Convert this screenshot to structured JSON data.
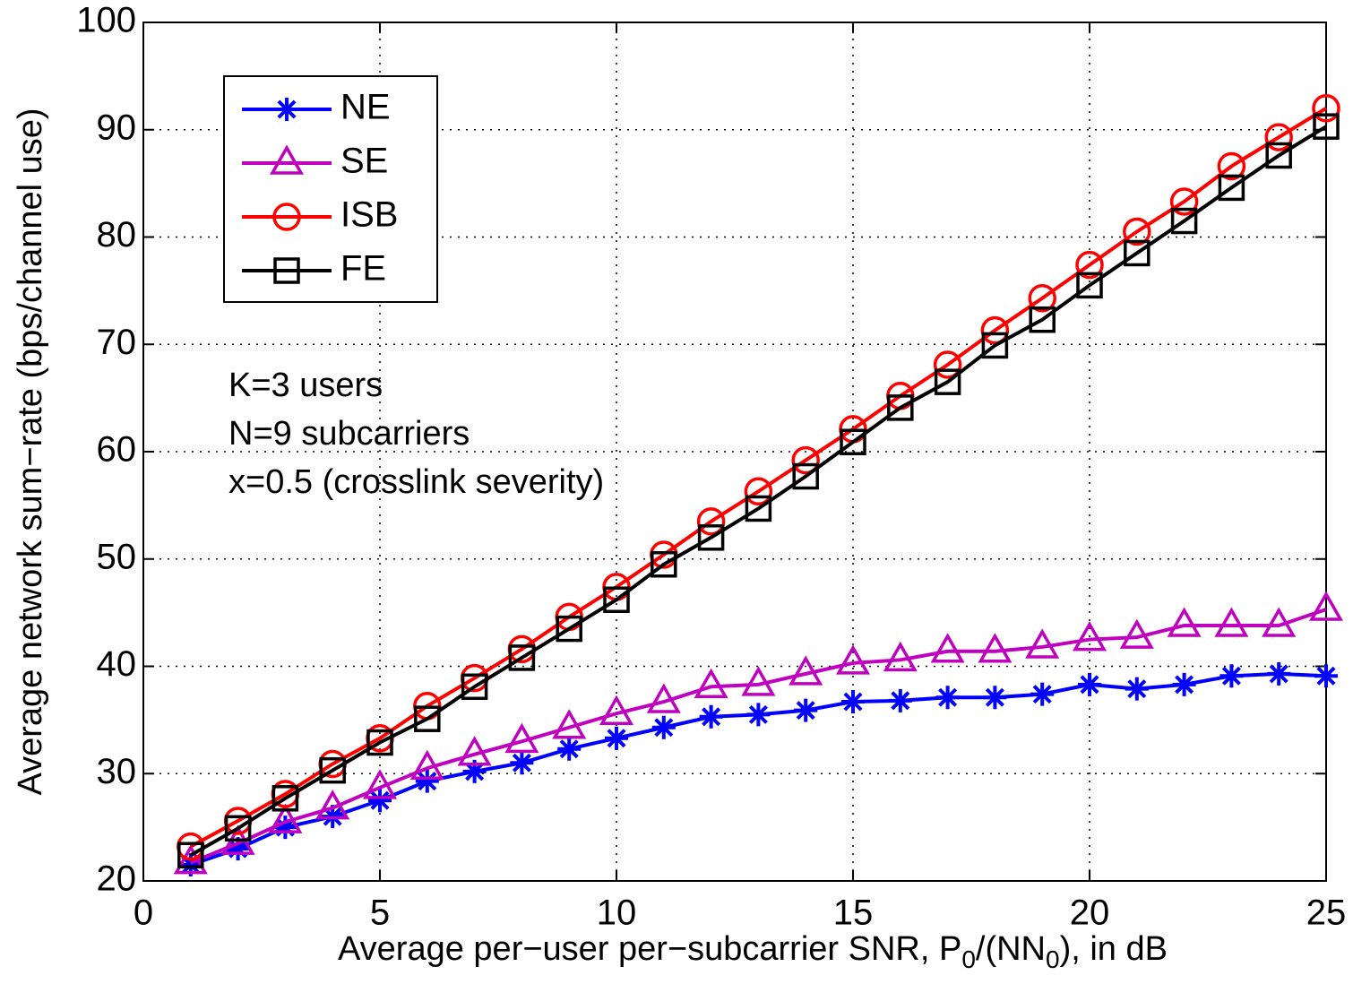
{
  "chart_data": {
    "type": "line",
    "ylabel": "Average network sum−rate (bps/channel use)",
    "xlabel_parts": [
      {
        "text": "Average per−user per−subcarrier SNR, P",
        "sub": false
      },
      {
        "text": "0",
        "sub": true
      },
      {
        "text": "/(NN",
        "sub": false
      },
      {
        "text": "0",
        "sub": true
      },
      {
        "text": "), in dB",
        "sub": false
      }
    ],
    "annotations": [
      "K=3 users",
      "N=9 subcarriers",
      "x=0.5 (crosslink severity)"
    ],
    "x": [
      1,
      2,
      3,
      4,
      5,
      6,
      7,
      8,
      9,
      10,
      11,
      12,
      13,
      14,
      15,
      16,
      17,
      18,
      19,
      20,
      21,
      22,
      23,
      24,
      25
    ],
    "series": [
      {
        "name": "NE",
        "color": "#0000ff",
        "marker": "star",
        "values": [
          21.5,
          23,
          25,
          26,
          27.5,
          29.3,
          30.2,
          31,
          32.3,
          33.3,
          34.3,
          35.3,
          35.5,
          35.9,
          36.7,
          36.8,
          37.1,
          37.1,
          37.4,
          38.3,
          37.9,
          38.3,
          39.1,
          39.3,
          39.1
        ]
      },
      {
        "name": "SE",
        "color": "#bf00bf",
        "marker": "triangle",
        "values": [
          21.7,
          23.5,
          25.5,
          26.8,
          28.7,
          30.5,
          31.8,
          33,
          34.3,
          35.6,
          36.7,
          38.1,
          38.3,
          39.3,
          40.3,
          40.6,
          41.4,
          41.4,
          41.8,
          42.5,
          42.7,
          43.8,
          43.8,
          43.8,
          45.3
        ]
      },
      {
        "name": "ISB",
        "color": "#ff0000",
        "marker": "circle",
        "values": [
          23.2,
          25.6,
          28.1,
          30.9,
          33.3,
          36.3,
          38.9,
          41.6,
          44.6,
          47.4,
          50.4,
          53.5,
          56.3,
          59.2,
          62.1,
          65.2,
          68.1,
          71.3,
          74.3,
          77.4,
          80.5,
          83.3,
          86.6,
          89.3,
          92
        ]
      },
      {
        "name": "FE",
        "color": "#000000",
        "marker": "square",
        "values": [
          22.4,
          24.9,
          27.7,
          30.3,
          32.9,
          35.1,
          38.1,
          40.8,
          43.5,
          46.2,
          49.5,
          52,
          54.7,
          57.7,
          60.9,
          64.1,
          66.5,
          69.9,
          72.3,
          75.5,
          78.5,
          81.5,
          84.6,
          87.6,
          90.3
        ]
      }
    ],
    "xlim": [
      0,
      25
    ],
    "xticks": [
      0,
      5,
      10,
      15,
      20,
      25
    ],
    "ylim": [
      20,
      100
    ],
    "yticks": [
      20,
      30,
      40,
      50,
      60,
      70,
      80,
      90,
      100
    ],
    "grid": true,
    "legend": "upper left"
  }
}
